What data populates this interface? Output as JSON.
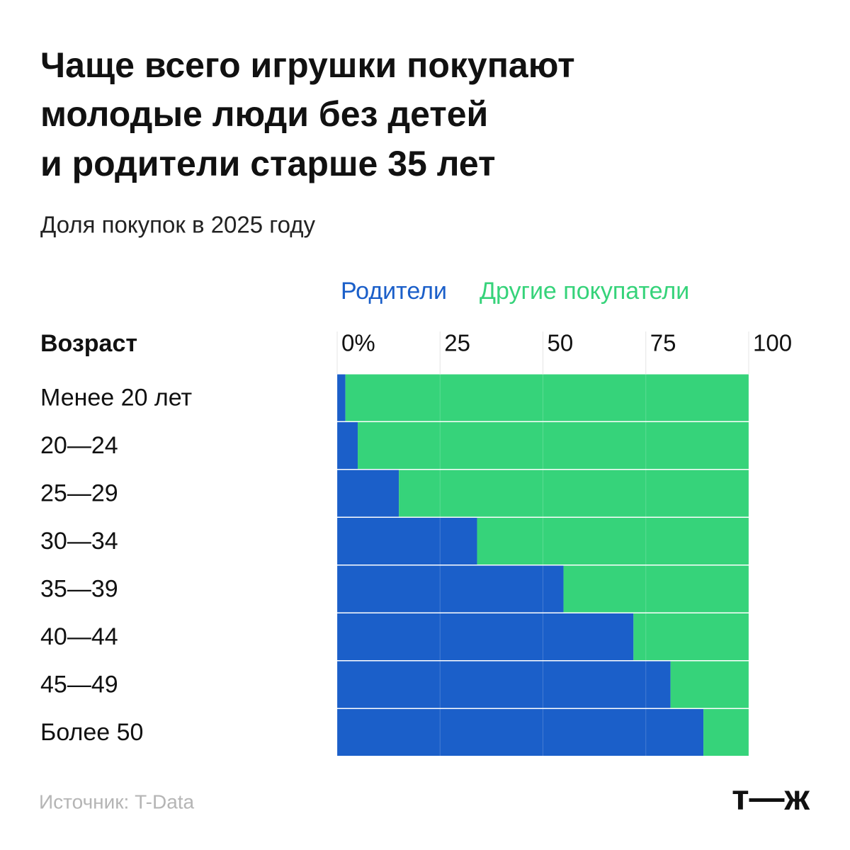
{
  "chart_data": {
    "type": "stacked-bar-horizontal",
    "title": [
      "Чаще всего игрушки покупают",
      "молодые люди без детей",
      "и родители старше 35 лет"
    ],
    "subtitle": "Доля покупок в 2025 году",
    "category_axis_label": "Возраст",
    "categories": [
      "Менее 20 лет",
      "20—24",
      "25—29",
      "30—34",
      "35—39",
      "40—44",
      "45—49",
      "Более 50"
    ],
    "series": [
      {
        "name": "Родители",
        "color": "#1b5fc9",
        "values": [
          2,
          5,
          15,
          34,
          55,
          72,
          81,
          89
        ]
      },
      {
        "name": "Другие покупатели",
        "color": "#36d37a",
        "values": [
          98,
          95,
          85,
          66,
          45,
          28,
          19,
          11
        ]
      }
    ],
    "xlim": [
      0,
      100
    ],
    "xticks": [
      {
        "value": 0,
        "label": "0%"
      },
      25,
      50,
      75,
      100
    ],
    "grid": true,
    "source": "Источник: T-Data",
    "logo": "т—ж"
  }
}
